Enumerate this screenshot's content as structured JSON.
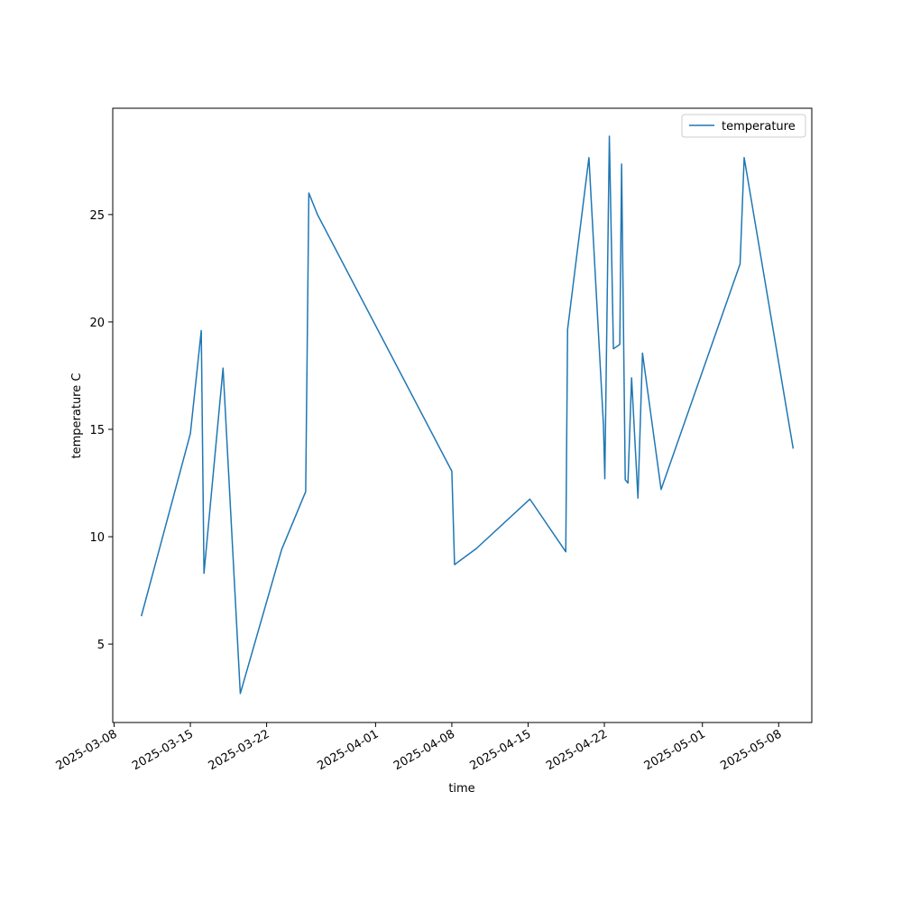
{
  "chart_data": {
    "type": "line",
    "xlabel": "time",
    "ylabel": "temperature C",
    "x_axis_type": "date",
    "xlim": [
      "2025-03-07T21:00",
      "2025-05-11T01:00"
    ],
    "ylim": [
      1.35,
      29.95
    ],
    "x_ticks": [
      "2025-03-08",
      "2025-03-15",
      "2025-03-22",
      "2025-04-01",
      "2025-04-08",
      "2025-04-15",
      "2025-04-22",
      "2025-05-01",
      "2025-05-08"
    ],
    "y_ticks": [
      5,
      10,
      15,
      20,
      25
    ],
    "legend_position": "upper right",
    "grid": false,
    "series": [
      {
        "name": "temperature",
        "color": "#1f77b4",
        "points": [
          [
            "2025-03-10T12:00",
            6.3
          ],
          [
            "2025-03-15T00:00",
            14.8
          ],
          [
            "2025-03-16T00:00",
            19.6
          ],
          [
            "2025-03-16T06:00",
            8.3
          ],
          [
            "2025-03-18T00:00",
            17.85
          ],
          [
            "2025-03-19T14:00",
            2.7
          ],
          [
            "2025-03-23T09:00",
            9.4
          ],
          [
            "2025-03-25T14:00",
            12.1
          ],
          [
            "2025-03-25T21:00",
            26.0
          ],
          [
            "2025-03-26T16:00",
            25.0
          ],
          [
            "2025-04-08T00:00",
            13.05
          ],
          [
            "2025-04-08T06:00",
            8.7
          ],
          [
            "2025-04-10T06:00",
            9.45
          ],
          [
            "2025-04-15T04:00",
            11.75
          ],
          [
            "2025-04-18T11:00",
            9.3
          ],
          [
            "2025-04-18T15:00",
            19.65
          ],
          [
            "2025-04-20T14:00",
            27.65
          ],
          [
            "2025-04-21T22:00",
            15.2
          ],
          [
            "2025-04-22T01:00",
            12.7
          ],
          [
            "2025-04-22T11:00",
            28.65
          ],
          [
            "2025-04-22T20:00",
            18.75
          ],
          [
            "2025-04-23T10:00",
            18.95
          ],
          [
            "2025-04-23T14:00",
            27.35
          ],
          [
            "2025-04-23T22:00",
            12.65
          ],
          [
            "2025-04-24T04:00",
            12.5
          ],
          [
            "2025-04-24T12:00",
            17.4
          ],
          [
            "2025-04-25T02:00",
            11.8
          ],
          [
            "2025-04-25T12:00",
            18.55
          ],
          [
            "2025-04-27T05:00",
            12.2
          ],
          [
            "2025-05-04T11:00",
            22.7
          ],
          [
            "2025-05-04T20:00",
            27.65
          ],
          [
            "2025-05-09T08:00",
            14.1
          ]
        ]
      }
    ]
  }
}
